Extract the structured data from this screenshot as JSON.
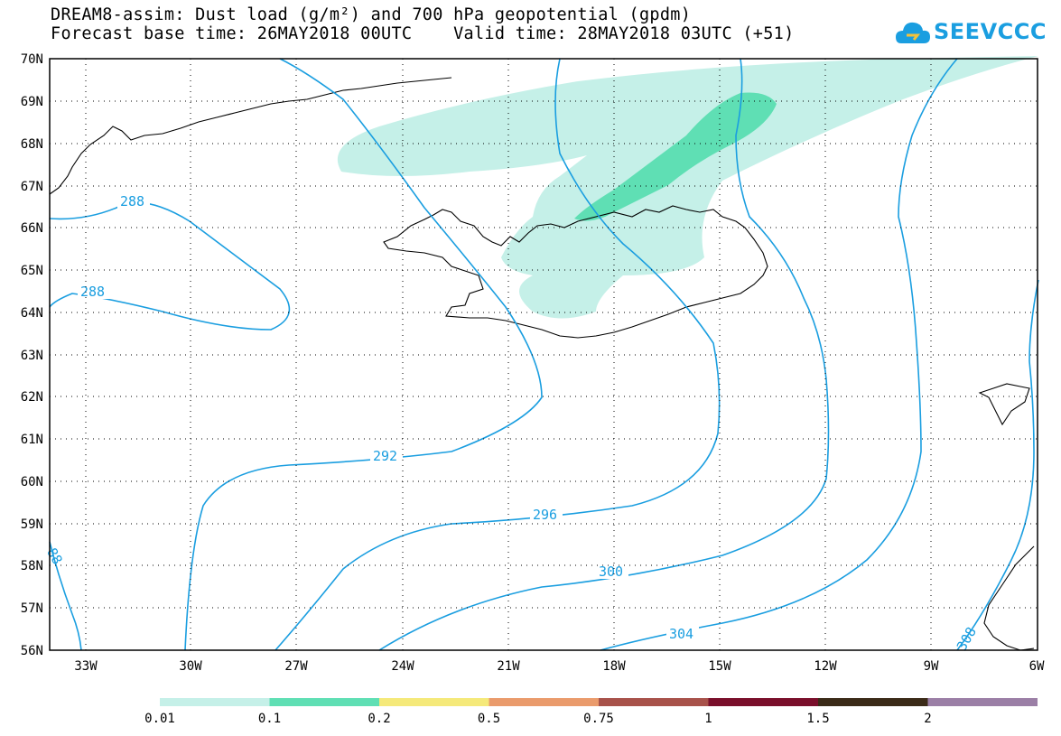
{
  "header": {
    "line1": "DREAM8-assim: Dust load (g/m²) and 700 hPa geopotential (gpdm)",
    "line2": "Forecast base time: 26MAY2018 00UTC    Valid time: 28MAY2018 03UTC (+51)"
  },
  "logo": {
    "text": "SEEVCCC",
    "icon": "cloud-icon",
    "color": "#1a9ee0"
  },
  "map": {
    "lat_labels": [
      "70N",
      "69N",
      "68N",
      "67N",
      "66N",
      "65N",
      "64N",
      "63N",
      "62N",
      "61N",
      "60N",
      "59N",
      "58N",
      "57N",
      "56N"
    ],
    "lon_labels": [
      "33W",
      "30W",
      "27W",
      "24W",
      "21W",
      "18W",
      "15W",
      "12W",
      "9W",
      "6W"
    ],
    "contour_labels": [
      "288",
      "288",
      "292",
      "296",
      "300",
      "304",
      "308",
      "88"
    ],
    "contour_color": "#1a9ee0",
    "coast_color": "#000000",
    "dust_colors": {
      "low": "#c5f0e8",
      "mid": "#5fdfb4"
    }
  },
  "legend": {
    "labels": [
      "0.01",
      "0.1",
      "0.2",
      "0.5",
      "0.75",
      "1",
      "1.5",
      "2"
    ],
    "colors": [
      "#c5f0e8",
      "#5fdfb4",
      "#f5e97a",
      "#ea9b6c",
      "#a8524a",
      "#7a0f2b",
      "#3b2b18",
      "#9b7fa6"
    ]
  }
}
